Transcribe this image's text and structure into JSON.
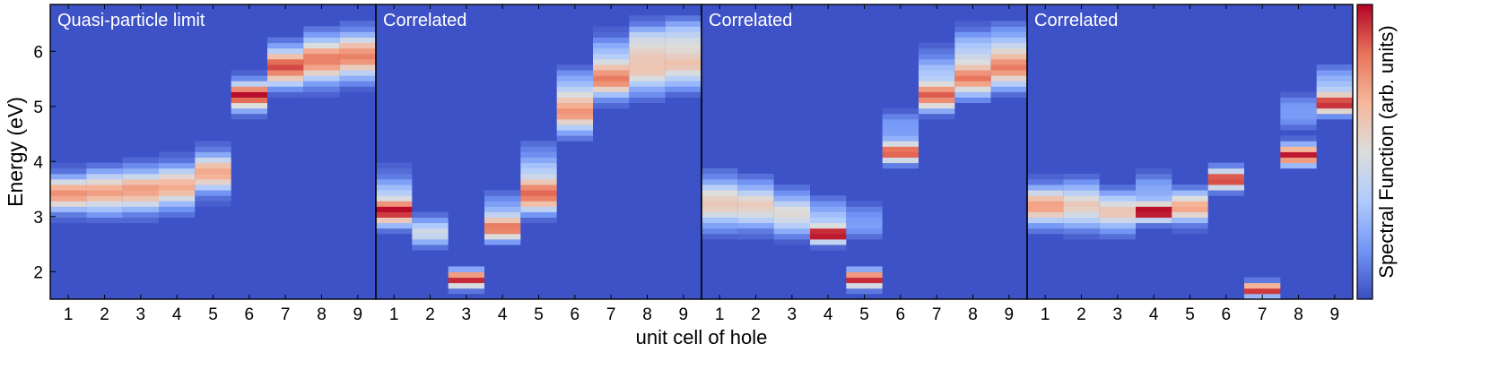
{
  "chart_data": {
    "type": "heatmap",
    "ylabel": "Energy (eV)",
    "xlabel": "unit cell of hole",
    "colorbar_label": "Spectral Function (arb. units)",
    "x": [
      1,
      2,
      3,
      4,
      5,
      6,
      7,
      8,
      9
    ],
    "xticks": [
      "1",
      "2",
      "3",
      "4",
      "5",
      "6",
      "7",
      "8",
      "9"
    ],
    "yticks": [
      {
        "label": "2",
        "value": 2
      },
      {
        "label": "3",
        "value": 3
      },
      {
        "label": "4",
        "value": 4
      },
      {
        "label": "5",
        "value": 5
      },
      {
        "label": "6",
        "value": 6
      }
    ],
    "ylim": [
      1.5,
      6.85
    ],
    "colormap": [
      "#3b4cc0",
      "#7396f5",
      "#b0cbfc",
      "#dcdddd",
      "#f6b79b",
      "#e7745b",
      "#b40426"
    ],
    "background_color": "#3d52c6",
    "panels": [
      {
        "title": "Quasi-particle limit",
        "columns": [
          {
            "x": 1,
            "peaks": [
              {
                "e": 3.42,
                "amp": 0.78,
                "w": 0.2
              }
            ]
          },
          {
            "x": 2,
            "peaks": [
              {
                "e": 3.45,
                "amp": 0.72,
                "w": 0.24
              }
            ]
          },
          {
            "x": 3,
            "peaks": [
              {
                "e": 3.48,
                "amp": 0.74,
                "w": 0.24
              }
            ]
          },
          {
            "x": 4,
            "peaks": [
              {
                "e": 3.55,
                "amp": 0.7,
                "w": 0.24
              }
            ]
          },
          {
            "x": 5,
            "peaks": [
              {
                "e": 3.8,
                "amp": 0.72,
                "w": 0.22
              }
            ]
          },
          {
            "x": 6,
            "peaks": [
              {
                "e": 5.2,
                "amp": 0.98,
                "w": 0.16
              }
            ]
          },
          {
            "x": 7,
            "peaks": [
              {
                "e": 5.72,
                "amp": 0.9,
                "w": 0.22
              }
            ]
          },
          {
            "x": 8,
            "peaks": [
              {
                "e": 5.85,
                "amp": 0.82,
                "w": 0.26
              }
            ]
          },
          {
            "x": 9,
            "peaks": [
              {
                "e": 5.92,
                "amp": 0.8,
                "w": 0.26
              }
            ]
          }
        ]
      },
      {
        "title": "Correlated",
        "columns": [
          {
            "x": 1,
            "peaks": [
              {
                "e": 3.08,
                "amp": 0.86,
                "w": 0.15
              },
              {
                "e": 3.4,
                "amp": 0.3,
                "w": 0.25
              }
            ]
          },
          {
            "x": 2,
            "peaks": [
              {
                "e": 2.72,
                "amp": 0.45,
                "w": 0.16
              }
            ]
          },
          {
            "x": 3,
            "peaks": [
              {
                "e": 1.87,
                "amp": 0.98,
                "w": 0.1
              }
            ]
          },
          {
            "x": 4,
            "peaks": [
              {
                "e": 2.78,
                "amp": 0.78,
                "w": 0.14
              },
              {
                "e": 3.1,
                "amp": 0.25,
                "w": 0.2
              }
            ]
          },
          {
            "x": 5,
            "peaks": [
              {
                "e": 3.38,
                "amp": 0.74,
                "w": 0.2
              },
              {
                "e": 3.8,
                "amp": 0.3,
                "w": 0.3
              }
            ]
          },
          {
            "x": 6,
            "peaks": [
              {
                "e": 4.87,
                "amp": 0.68,
                "w": 0.22
              },
              {
                "e": 5.3,
                "amp": 0.3,
                "w": 0.25
              }
            ]
          },
          {
            "x": 7,
            "peaks": [
              {
                "e": 5.48,
                "amp": 0.74,
                "w": 0.2
              },
              {
                "e": 5.9,
                "amp": 0.3,
                "w": 0.25
              }
            ]
          },
          {
            "x": 8,
            "peaks": [
              {
                "e": 5.7,
                "amp": 0.6,
                "w": 0.28
              },
              {
                "e": 6.2,
                "amp": 0.35,
                "w": 0.2
              }
            ]
          },
          {
            "x": 9,
            "peaks": [
              {
                "e": 5.78,
                "amp": 0.6,
                "w": 0.28
              },
              {
                "e": 6.3,
                "amp": 0.3,
                "w": 0.2
              }
            ]
          }
        ]
      },
      {
        "title": "Correlated",
        "columns": [
          {
            "x": 1,
            "peaks": [
              {
                "e": 3.25,
                "amp": 0.6,
                "w": 0.28
              }
            ]
          },
          {
            "x": 2,
            "peaks": [
              {
                "e": 3.2,
                "amp": 0.58,
                "w": 0.26
              }
            ]
          },
          {
            "x": 3,
            "peaks": [
              {
                "e": 3.05,
                "amp": 0.52,
                "w": 0.24
              }
            ]
          },
          {
            "x": 4,
            "peaks": [
              {
                "e": 2.68,
                "amp": 0.98,
                "w": 0.1
              },
              {
                "e": 3.0,
                "amp": 0.3,
                "w": 0.2
              }
            ]
          },
          {
            "x": 5,
            "peaks": [
              {
                "e": 1.87,
                "amp": 0.98,
                "w": 0.1
              },
              {
                "e": 2.9,
                "amp": 0.2,
                "w": 0.2
              }
            ]
          },
          {
            "x": 6,
            "peaks": [
              {
                "e": 4.17,
                "amp": 0.9,
                "w": 0.12
              },
              {
                "e": 4.6,
                "amp": 0.2,
                "w": 0.2
              }
            ]
          },
          {
            "x": 7,
            "peaks": [
              {
                "e": 5.18,
                "amp": 0.8,
                "w": 0.16
              },
              {
                "e": 5.6,
                "amp": 0.3,
                "w": 0.25
              }
            ]
          },
          {
            "x": 8,
            "peaks": [
              {
                "e": 5.5,
                "amp": 0.76,
                "w": 0.2
              },
              {
                "e": 6.0,
                "amp": 0.35,
                "w": 0.25
              }
            ]
          },
          {
            "x": 9,
            "peaks": [
              {
                "e": 5.68,
                "amp": 0.72,
                "w": 0.22
              },
              {
                "e": 6.1,
                "amp": 0.3,
                "w": 0.25
              }
            ]
          }
        ]
      },
      {
        "title": "Correlated",
        "columns": [
          {
            "x": 1,
            "peaks": [
              {
                "e": 3.2,
                "amp": 0.74,
                "w": 0.22
              }
            ]
          },
          {
            "x": 2,
            "peaks": [
              {
                "e": 3.2,
                "amp": 0.58,
                "w": 0.26
              }
            ]
          },
          {
            "x": 3,
            "peaks": [
              {
                "e": 3.1,
                "amp": 0.6,
                "w": 0.22
              }
            ]
          },
          {
            "x": 4,
            "peaks": [
              {
                "e": 3.08,
                "amp": 0.98,
                "w": 0.1
              },
              {
                "e": 3.4,
                "amp": 0.25,
                "w": 0.25
              }
            ]
          },
          {
            "x": 5,
            "peaks": [
              {
                "e": 3.18,
                "amp": 0.72,
                "w": 0.18
              }
            ]
          },
          {
            "x": 6,
            "peaks": [
              {
                "e": 3.68,
                "amp": 0.95,
                "w": 0.12
              }
            ]
          },
          {
            "x": 7,
            "peaks": [
              {
                "e": 1.68,
                "amp": 0.98,
                "w": 0.08
              }
            ]
          },
          {
            "x": 8,
            "peaks": [
              {
                "e": 4.12,
                "amp": 0.98,
                "w": 0.12
              },
              {
                "e": 4.9,
                "amp": 0.2,
                "w": 0.2
              }
            ]
          },
          {
            "x": 9,
            "peaks": [
              {
                "e": 5.05,
                "amp": 0.92,
                "w": 0.12
              },
              {
                "e": 5.4,
                "amp": 0.3,
                "w": 0.2
              }
            ]
          }
        ]
      }
    ]
  }
}
